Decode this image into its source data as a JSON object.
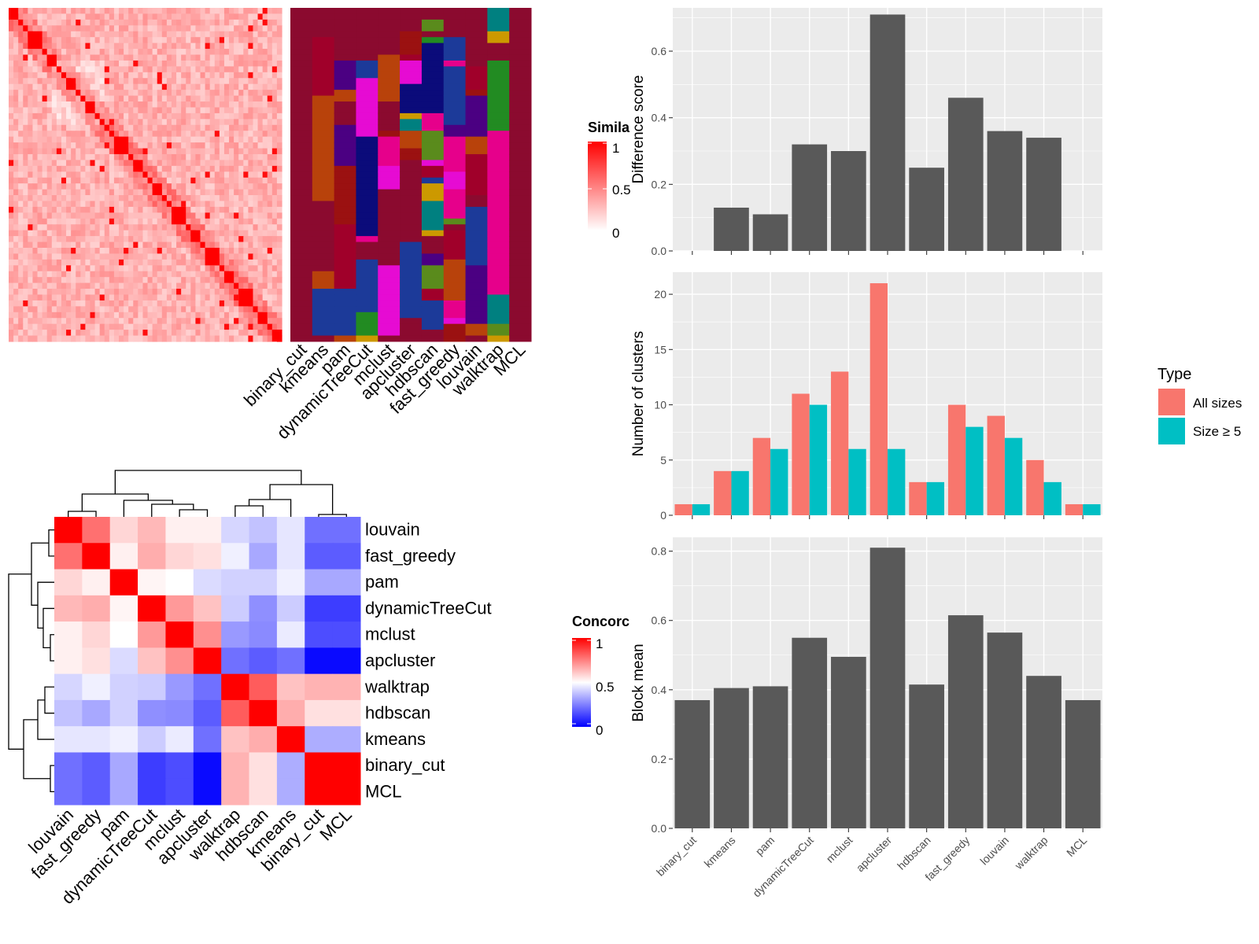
{
  "colors": {
    "panel_bg": "#ebebeb",
    "grid": "#ffffff",
    "bar_gray": "#595959",
    "all_sizes": "#f8766d",
    "size_ge5": "#00bfc4",
    "similarity_high": "#ff0000",
    "similarity_low": "#ffffff",
    "concordance_high": "#ff0000",
    "concordance_mid": "#ffffff",
    "concordance_low": "#0000ff"
  },
  "top_heatmap": {
    "legend_title": "Simila",
    "legend_ticks": [
      "1",
      "0.5",
      "0"
    ],
    "column_labels": [
      "binary_cut",
      "kmeans",
      "pam",
      "dynamicTreeCut",
      "mclust",
      "apcluster",
      "hdbscan",
      "fast_greedy",
      "louvain",
      "walktrap",
      "MCL"
    ]
  },
  "bottom_heatmap": {
    "legend_title": "Concorc",
    "legend_ticks": [
      "1",
      "0.5",
      "0"
    ],
    "row_labels": [
      "louvain",
      "fast_greedy",
      "pam",
      "dynamicTreeCut",
      "mclust",
      "apcluster",
      "walktrap",
      "hdbscan",
      "kmeans",
      "binary_cut",
      "MCL"
    ],
    "column_labels": [
      "louvain",
      "fast_greedy",
      "pam",
      "dynamicTreeCut",
      "mclust",
      "apcluster",
      "walktrap",
      "hdbscan",
      "kmeans",
      "binary_cut",
      "MCL"
    ]
  },
  "chart_data": [
    {
      "type": "heatmap",
      "legend_title": "Concorc",
      "value_range": [
        0,
        1
      ],
      "rows": [
        "louvain",
        "fast_greedy",
        "pam",
        "dynamicTreeCut",
        "mclust",
        "apcluster",
        "walktrap",
        "hdbscan",
        "kmeans",
        "binary_cut",
        "MCL"
      ],
      "cols": [
        "louvain",
        "fast_greedy",
        "pam",
        "dynamicTreeCut",
        "mclust",
        "apcluster",
        "walktrap",
        "hdbscan",
        "kmeans",
        "binary_cut",
        "MCL"
      ],
      "values": [
        [
          1.0,
          0.78,
          0.58,
          0.64,
          0.53,
          0.53,
          0.42,
          0.38,
          0.45,
          0.22,
          0.22
        ],
        [
          0.78,
          1.0,
          0.53,
          0.66,
          0.58,
          0.56,
          0.47,
          0.33,
          0.45,
          0.18,
          0.18
        ],
        [
          0.58,
          0.53,
          1.0,
          0.52,
          0.5,
          0.43,
          0.41,
          0.41,
          0.47,
          0.33,
          0.33
        ],
        [
          0.64,
          0.66,
          0.52,
          1.0,
          0.7,
          0.62,
          0.4,
          0.28,
          0.4,
          0.12,
          0.12
        ],
        [
          0.53,
          0.58,
          0.5,
          0.7,
          1.0,
          0.72,
          0.3,
          0.27,
          0.46,
          0.15,
          0.15
        ],
        [
          0.53,
          0.56,
          0.43,
          0.62,
          0.72,
          1.0,
          0.22,
          0.18,
          0.22,
          0.02,
          0.02
        ],
        [
          0.42,
          0.47,
          0.41,
          0.4,
          0.3,
          0.22,
          1.0,
          0.82,
          0.62,
          0.65,
          0.65
        ],
        [
          0.38,
          0.33,
          0.41,
          0.28,
          0.27,
          0.18,
          0.82,
          1.0,
          0.66,
          0.56,
          0.56
        ],
        [
          0.45,
          0.45,
          0.47,
          0.4,
          0.46,
          0.22,
          0.62,
          0.66,
          1.0,
          0.34,
          0.34
        ],
        [
          0.22,
          0.18,
          0.33,
          0.12,
          0.15,
          0.02,
          0.65,
          0.56,
          0.34,
          1.0,
          1.0
        ],
        [
          0.22,
          0.18,
          0.33,
          0.12,
          0.15,
          0.02,
          0.65,
          0.56,
          0.34,
          1.0,
          1.0
        ]
      ]
    },
    {
      "type": "bar",
      "ylabel": "Difference score",
      "categories": [
        "binary_cut",
        "kmeans",
        "pam",
        "dynamicTreeCut",
        "mclust",
        "apcluster",
        "hdbscan",
        "fast_greedy",
        "louvain",
        "walktrap",
        "MCL"
      ],
      "values": [
        0,
        0.13,
        0.11,
        0.32,
        0.3,
        0.71,
        0.25,
        0.46,
        0.36,
        0.34,
        0
      ],
      "ylim": [
        0,
        0.73
      ],
      "yticks": [
        "0.0",
        "0.2",
        "0.4",
        "0.6"
      ]
    },
    {
      "type": "bar",
      "ylabel": "Number of clusters",
      "legend_title": "Type",
      "legend_position": "right",
      "categories": [
        "binary_cut",
        "kmeans",
        "pam",
        "dynamicTreeCut",
        "mclust",
        "apcluster",
        "hdbscan",
        "fast_greedy",
        "louvain",
        "walktrap",
        "MCL"
      ],
      "series": [
        {
          "name": "All sizes",
          "values": [
            1,
            4,
            7,
            11,
            13,
            21,
            3,
            10,
            9,
            5,
            1
          ]
        },
        {
          "name": "Size ≥ 5",
          "values": [
            1,
            4,
            6,
            10,
            6,
            6,
            3,
            8,
            7,
            3,
            1
          ]
        }
      ],
      "ylim": [
        0,
        22
      ],
      "yticks": [
        "0",
        "5",
        "10",
        "15",
        "20"
      ]
    },
    {
      "type": "bar",
      "ylabel": "Block mean",
      "categories": [
        "binary_cut",
        "kmeans",
        "pam",
        "dynamicTreeCut",
        "mclust",
        "apcluster",
        "hdbscan",
        "fast_greedy",
        "louvain",
        "walktrap",
        "MCL"
      ],
      "values": [
        0.37,
        0.405,
        0.41,
        0.55,
        0.495,
        0.81,
        0.415,
        0.615,
        0.565,
        0.44,
        0.37
      ],
      "ylim": [
        0,
        0.84
      ],
      "yticks": [
        "0.0",
        "0.2",
        "0.4",
        "0.6",
        "0.8"
      ]
    }
  ]
}
